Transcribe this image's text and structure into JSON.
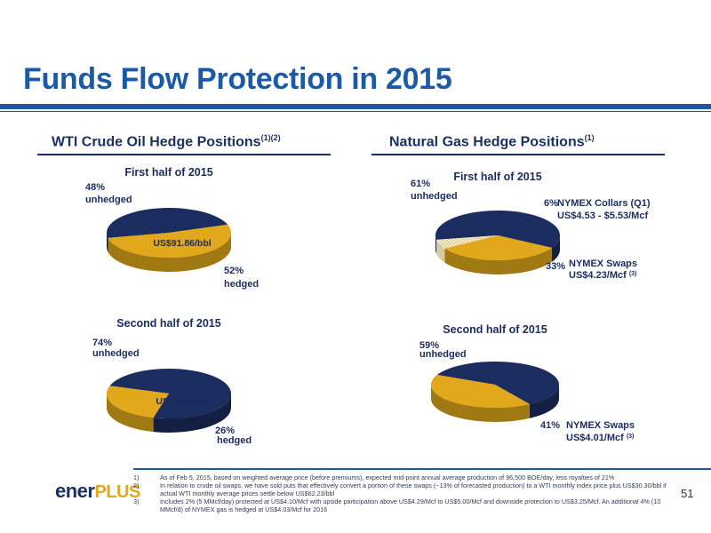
{
  "page": {
    "title": "Funds Flow Protection in 2015",
    "page_number": "51"
  },
  "sections": {
    "oil": {
      "heading": "WTI Crude Oil Hedge Positions",
      "sup": "(1)(2)"
    },
    "gas": {
      "heading": "Natural Gas Hedge Positions",
      "sup": "(1)"
    }
  },
  "colors": {
    "navy": "#1b2c5e",
    "gold": "#e0a81a",
    "pattern": "#f1e8c8",
    "brand_blue": "#1b5aa7"
  },
  "chart_data": [
    {
      "type": "pie",
      "title": "First half of 2015",
      "slices": [
        {
          "label": "unhedged",
          "value": 48,
          "value_label": "48%",
          "color": "#1b2c5e"
        },
        {
          "label": "hedged",
          "value": 52,
          "value_label": "52%",
          "color": "#e0a81a",
          "inner_text": "US$91.86/bbl"
        }
      ]
    },
    {
      "type": "pie",
      "title": "Second half of 2015",
      "slices": [
        {
          "label": "unhedged",
          "value": 74,
          "value_label": "74%",
          "color": "#1b2c5e"
        },
        {
          "label": "hedged",
          "value": 26,
          "value_label": "26%",
          "color": "#e0a81a",
          "inner_text": "US$93.86/bbl"
        }
      ]
    },
    {
      "type": "pie",
      "title": "First half of 2015",
      "slices": [
        {
          "label": "unhedged",
          "value": 61,
          "value_label": "61%",
          "color": "#1b2c5e"
        },
        {
          "label": "NYMEX Swaps",
          "value": 33,
          "value_label": "33%",
          "color": "#e0a81a",
          "detail": "US$4.23/Mcf",
          "note": "(3)"
        },
        {
          "label": "NYMEX Collars (Q1)",
          "value": 6,
          "value_label": "6%",
          "color": "#f1e8c8",
          "detail": "US$4.53 - $5.53/Mcf"
        }
      ]
    },
    {
      "type": "pie",
      "title": "Second half of 2015",
      "slices": [
        {
          "label": "unhedged",
          "value": 59,
          "value_label": "59%",
          "color": "#1b2c5e"
        },
        {
          "label": "NYMEX Swaps",
          "value": 41,
          "value_label": "41%",
          "color": "#e0a81a",
          "detail": "US$4.01/Mcf",
          "note": "(3)"
        }
      ]
    }
  ],
  "footer": {
    "logo_a": "ener",
    "logo_b": "PLUS",
    "footnotes": [
      {
        "num": "1)",
        "text": "As of Feb 5, 2015, based on weighted average price (before premiums), expected mid-point annual average production of 96,500 BOE/day, less royalties of 21%"
      },
      {
        "num": "2)",
        "text": "In relation to crude oil swaps, we have sold puts that effectively convert a portion of these swaps (~13% of forecasted production) to a WTI monthly index price plus US$30.30/bbl if actual WTI monthly average prices settle below US$62.23/bbl"
      },
      {
        "num": "3)",
        "text": "Includes 2% (5 MMcf/day) protected at US$4.10/Mcf with upside participation above US$4.29/Mcf to US$5.00/Mcf and downside protection to US$3.25/Mcf. An additional 4% (10 MMcf/d) of NYMEX gas is hedged at US$4.03/Mcf for 2016"
      }
    ]
  }
}
